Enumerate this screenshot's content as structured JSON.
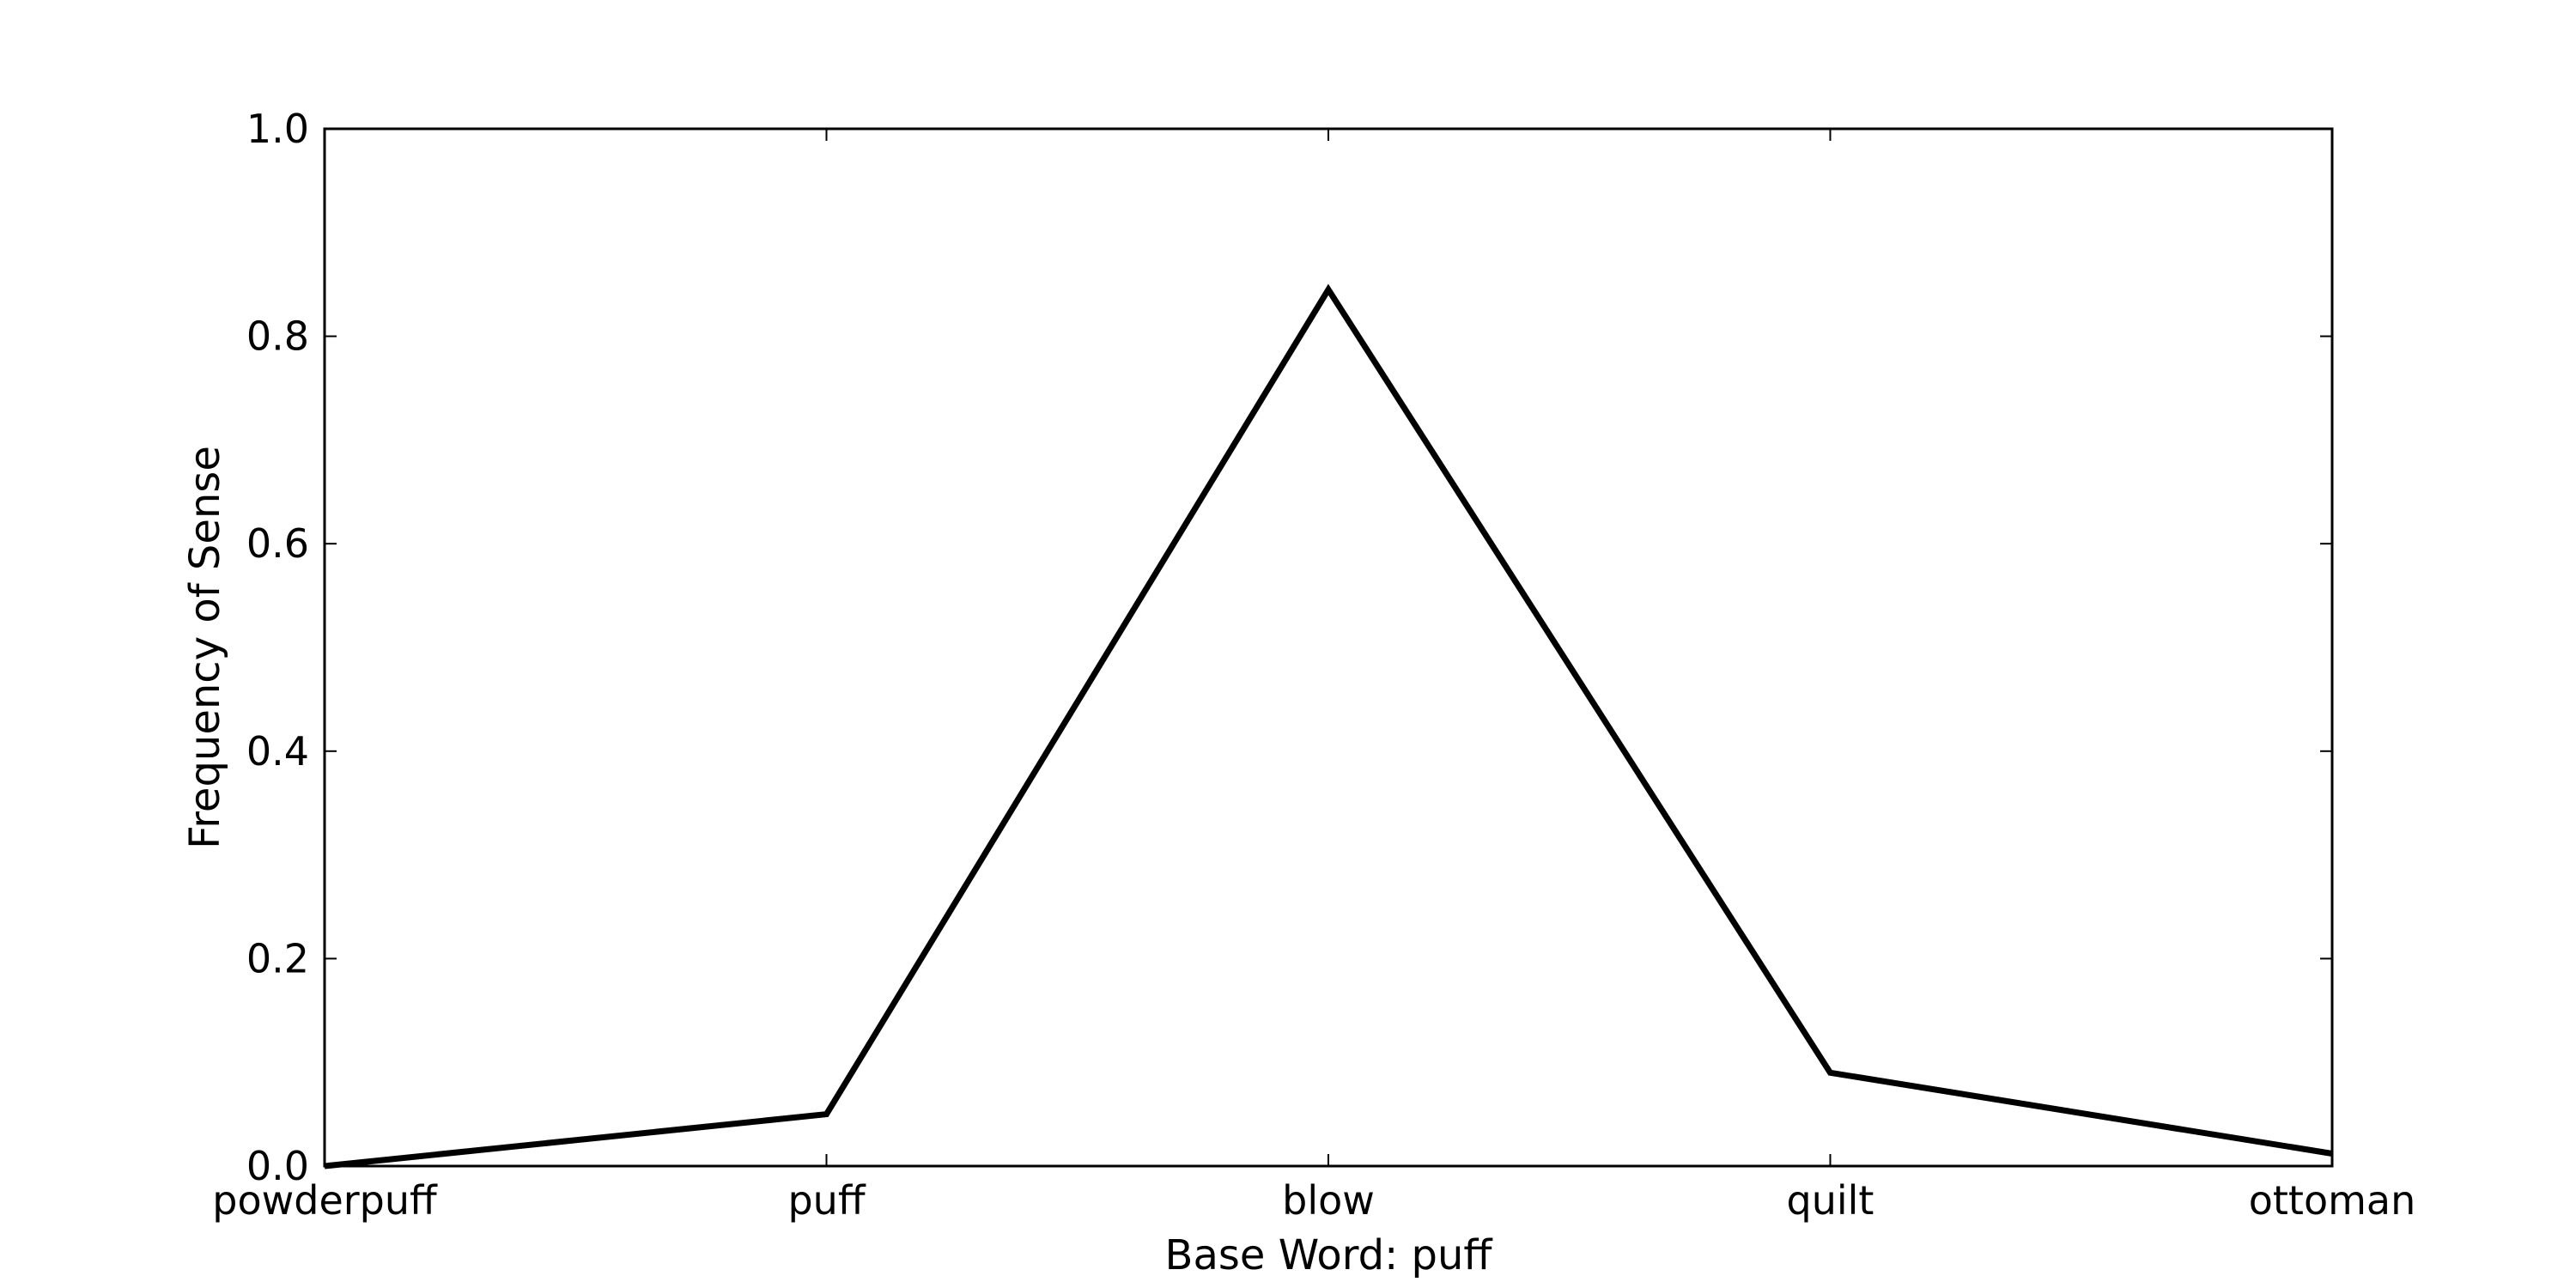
{
  "chart_data": {
    "type": "line",
    "title": "",
    "xlabel": "Base Word: puff",
    "ylabel": "Frequency of Sense",
    "categories": [
      "powderpuff",
      "puff",
      "blow",
      "quilt",
      "ottoman"
    ],
    "series": [
      {
        "values": [
          0.0,
          0.05,
          0.845,
          0.09,
          0.012
        ]
      }
    ],
    "ylim": [
      0.0,
      1.0
    ],
    "yticks": [
      "0.0",
      "0.2",
      "0.4",
      "0.6",
      "0.8",
      "1.0"
    ],
    "grid": false,
    "legend": "none",
    "line_color": "#000000",
    "axes_color": "#000000",
    "background": "#ffffff"
  }
}
